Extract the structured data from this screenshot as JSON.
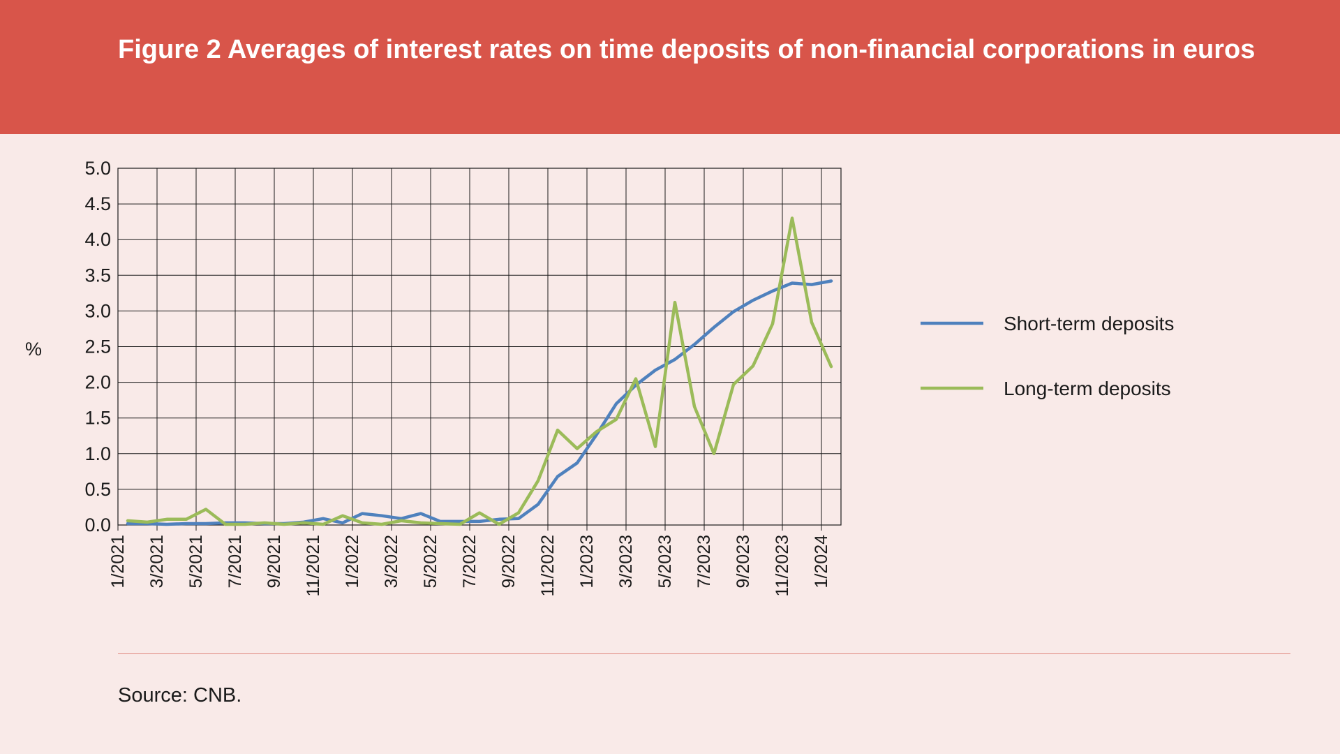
{
  "header": {
    "title": "Figure 2 Averages of interest rates on time deposits of non-financial corporations in euros"
  },
  "footer": {
    "source": "Source: CNB."
  },
  "colors": {
    "banner": "#d8554a",
    "background": "#f9eae8",
    "short_term": "#4f81bd",
    "long_term": "#9bbb59"
  },
  "chart_data": {
    "type": "line",
    "title": "",
    "xlabel": "",
    "ylabel": "%",
    "ylim": [
      0,
      5
    ],
    "yticks": [
      "0.0",
      "0.5",
      "1.0",
      "1.5",
      "2.0",
      "2.5",
      "3.0",
      "3.5",
      "4.0",
      "4.5",
      "5.0"
    ],
    "x": [
      "1/2021",
      "2/2021",
      "3/2021",
      "4/2021",
      "5/2021",
      "6/2021",
      "7/2021",
      "8/2021",
      "9/2021",
      "10/2021",
      "11/2021",
      "12/2021",
      "1/2022",
      "2/2022",
      "3/2022",
      "4/2022",
      "5/2022",
      "6/2022",
      "7/2022",
      "8/2022",
      "9/2022",
      "10/2022",
      "11/2022",
      "12/2022",
      "1/2023",
      "2/2023",
      "3/2023",
      "4/2023",
      "5/2023",
      "6/2023",
      "7/2023",
      "8/2023",
      "9/2023",
      "10/2023",
      "11/2023",
      "12/2023",
      "1/2024"
    ],
    "xtick_labels": [
      "1/2021",
      "3/2021",
      "5/2021",
      "7/2021",
      "9/2021",
      "11/2021",
      "1/2022",
      "3/2022",
      "5/2022",
      "7/2022",
      "9/2022",
      "11/2022",
      "1/2023",
      "3/2023",
      "5/2023",
      "7/2023",
      "9/2023",
      "11/2023",
      "1/2024"
    ],
    "grid": true,
    "legend_position": "right",
    "series": [
      {
        "name": "Short-term deposits",
        "color": "#4f81bd",
        "values": [
          0.02,
          0.02,
          0.01,
          0.02,
          0.02,
          0.03,
          0.03,
          0.02,
          0.02,
          0.04,
          0.09,
          0.03,
          0.16,
          0.13,
          0.09,
          0.16,
          0.05,
          0.05,
          0.05,
          0.08,
          0.09,
          0.29,
          0.68,
          0.87,
          1.27,
          1.7,
          1.96,
          2.17,
          2.32,
          2.53,
          2.77,
          2.99,
          3.15,
          3.28,
          3.39,
          3.37,
          3.42
        ]
      },
      {
        "name": "Long-term deposits",
        "color": "#9bbb59",
        "values": [
          0.06,
          0.04,
          0.08,
          0.08,
          0.22,
          0.01,
          0.01,
          0.03,
          0.01,
          0.03,
          0.01,
          0.13,
          0.03,
          0.01,
          0.06,
          0.03,
          0.02,
          0.01,
          0.17,
          0.01,
          0.17,
          0.62,
          1.33,
          1.07,
          1.31,
          1.48,
          2.05,
          1.1,
          3.12,
          1.66,
          1.0,
          1.97,
          2.23,
          2.82,
          4.3,
          2.84,
          2.22
        ]
      }
    ]
  }
}
